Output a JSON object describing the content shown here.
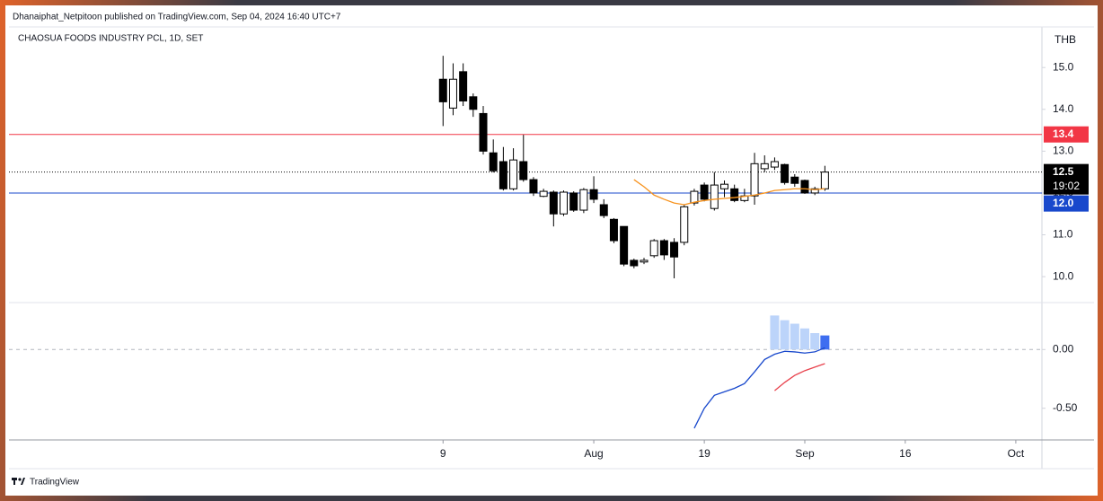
{
  "header": {
    "text": "Dhanaiphat_Netpitoon published on TradingView.com, Sep 04, 2024 16:40 UTC+7"
  },
  "footer": {
    "brand": "TradingView"
  },
  "chart_data": [
    {
      "type": "candlestick",
      "title": "CHAOSUA FOODS INDUSTRY PCL, 1D, SET",
      "currency": "THB",
      "x": [
        0,
        1,
        2,
        3,
        4,
        5,
        6,
        7,
        8,
        9,
        10,
        11,
        12,
        13,
        14,
        15,
        16,
        17,
        18,
        19,
        20,
        21,
        22,
        23,
        24,
        25,
        26,
        27,
        28,
        29,
        30,
        31,
        32,
        33,
        34,
        35,
        36,
        37,
        38
      ],
      "open": [
        14.72,
        14.03,
        14.9,
        14.3,
        13.9,
        12.96,
        12.75,
        12.1,
        12.75,
        12.32,
        11.92,
        12.02,
        11.5,
        12.0,
        11.59,
        12.08,
        11.72,
        11.37,
        11.2,
        10.39,
        10.35,
        10.5,
        10.86,
        10.82,
        10.82,
        11.76,
        12.19,
        11.63,
        12.1,
        12.1,
        11.82,
        11.93,
        12.58,
        12.62,
        12.68,
        12.38,
        12.3,
        12.0,
        12.1
      ],
      "high": [
        15.28,
        15.1,
        15.1,
        14.38,
        14.08,
        13.28,
        13.1,
        13.07,
        13.39,
        12.38,
        12.1,
        12.06,
        12.06,
        12.04,
        12.12,
        12.4,
        11.85,
        11.4,
        11.2,
        10.43,
        10.45,
        10.9,
        10.9,
        10.92,
        11.72,
        12.1,
        12.25,
        12.5,
        12.3,
        12.2,
        12.1,
        12.96,
        12.9,
        12.85,
        12.7,
        12.45,
        12.32,
        12.15,
        12.65
      ],
      "low": [
        13.6,
        13.86,
        14.08,
        13.82,
        12.92,
        12.49,
        12.06,
        12.06,
        12.27,
        11.93,
        11.9,
        11.2,
        11.45,
        11.55,
        11.52,
        11.76,
        11.4,
        10.8,
        10.25,
        10.2,
        10.3,
        10.45,
        10.4,
        9.96,
        10.75,
        11.7,
        11.8,
        11.58,
        11.9,
        11.78,
        11.78,
        11.72,
        12.5,
        12.55,
        12.2,
        12.15,
        11.98,
        11.95,
        12.05
      ],
      "close": [
        14.18,
        14.72,
        14.2,
        14.0,
        13.0,
        12.53,
        12.1,
        12.79,
        12.32,
        12.0,
        12.04,
        11.5,
        12.02,
        11.59,
        12.08,
        11.85,
        11.46,
        10.86,
        10.3,
        10.26,
        10.39,
        10.86,
        10.52,
        10.47,
        11.67,
        12.04,
        11.85,
        12.19,
        12.21,
        11.82,
        11.93,
        12.7,
        12.7,
        12.75,
        12.25,
        12.23,
        12.0,
        12.1,
        12.5
      ],
      "up_color": "#ffffff",
      "down_color": "#000000",
      "wick_color": "#000000",
      "overlays": [
        {
          "color": "#f7931e",
          "values": [
            null,
            null,
            null,
            null,
            null,
            null,
            null,
            null,
            null,
            null,
            null,
            null,
            null,
            null,
            null,
            null,
            null,
            null,
            null,
            12.32,
            12.15,
            11.95,
            11.85,
            11.76,
            11.72,
            11.78,
            11.82,
            11.85,
            11.87,
            11.89,
            11.92,
            11.95,
            12.0,
            12.06,
            12.08,
            12.1,
            12.1,
            12.08,
            12.1
          ]
        }
      ],
      "hlines": [
        {
          "value": 13.4,
          "color": "#f23645"
        },
        {
          "value": 12.5,
          "label": "12.5",
          "color": "#000000",
          "countdown": "19:02",
          "dotted": true
        },
        {
          "value": 12,
          "label": "12.0",
          "color": "#1848cc"
        }
      ],
      "xlim": [
        -43.2,
        59.6
      ],
      "xticks": [
        {
          "value": 0,
          "label": "9"
        },
        {
          "value": 15,
          "label": "Aug"
        },
        {
          "value": 26,
          "label": "19"
        },
        {
          "value": 36,
          "label": "Sep"
        },
        {
          "value": 46,
          "label": "16"
        },
        {
          "value": 57,
          "label": "Oct"
        }
      ],
      "ylim": [
        9.38,
        15.97
      ],
      "yticks": [
        {
          "value": 15,
          "label": "15.0"
        },
        {
          "value": 14,
          "label": "14.0"
        },
        {
          "value": 13,
          "label": "13.0"
        },
        {
          "value": 12,
          "label": "12.0"
        },
        {
          "value": 11,
          "label": "11.0"
        },
        {
          "value": 10,
          "label": "10.0"
        }
      ],
      "grid": false
    },
    {
      "type": "macd",
      "x": [
        25,
        26,
        27,
        28,
        29,
        30,
        31,
        32,
        33,
        34,
        35,
        36,
        37,
        38
      ],
      "macd": {
        "color": "#1848cc",
        "values": [
          -0.67,
          -0.5,
          -0.39,
          -0.36,
          -0.33,
          -0.29,
          -0.19,
          -0.085,
          -0.04,
          -0.015,
          -0.02,
          -0.03,
          -0.02,
          0.015
        ]
      },
      "signal": {
        "color": "#e8424d",
        "values": [
          null,
          null,
          null,
          null,
          null,
          null,
          null,
          null,
          -0.35,
          -0.28,
          -0.22,
          -0.18,
          -0.15,
          -0.12
        ]
      },
      "histogram": {
        "values": [
          null,
          null,
          null,
          null,
          null,
          null,
          null,
          null,
          0.29,
          0.25,
          0.22,
          0.18,
          0.14,
          0.12
        ],
        "colors": [
          null,
          null,
          null,
          null,
          null,
          null,
          null,
          null,
          "#bcd4fa",
          "#bcd4fa",
          "#bcd4fa",
          "#bcd4fa",
          "#bcd4fa",
          "#3e6ef0"
        ]
      },
      "xlim": [
        -43.2,
        59.6
      ],
      "ylim": [
        -0.77,
        0.4
      ],
      "yticks": [
        {
          "value": 0,
          "label": "0.00"
        },
        {
          "value": -0.5,
          "label": "-0.50"
        }
      ],
      "zero_line": true
    }
  ]
}
